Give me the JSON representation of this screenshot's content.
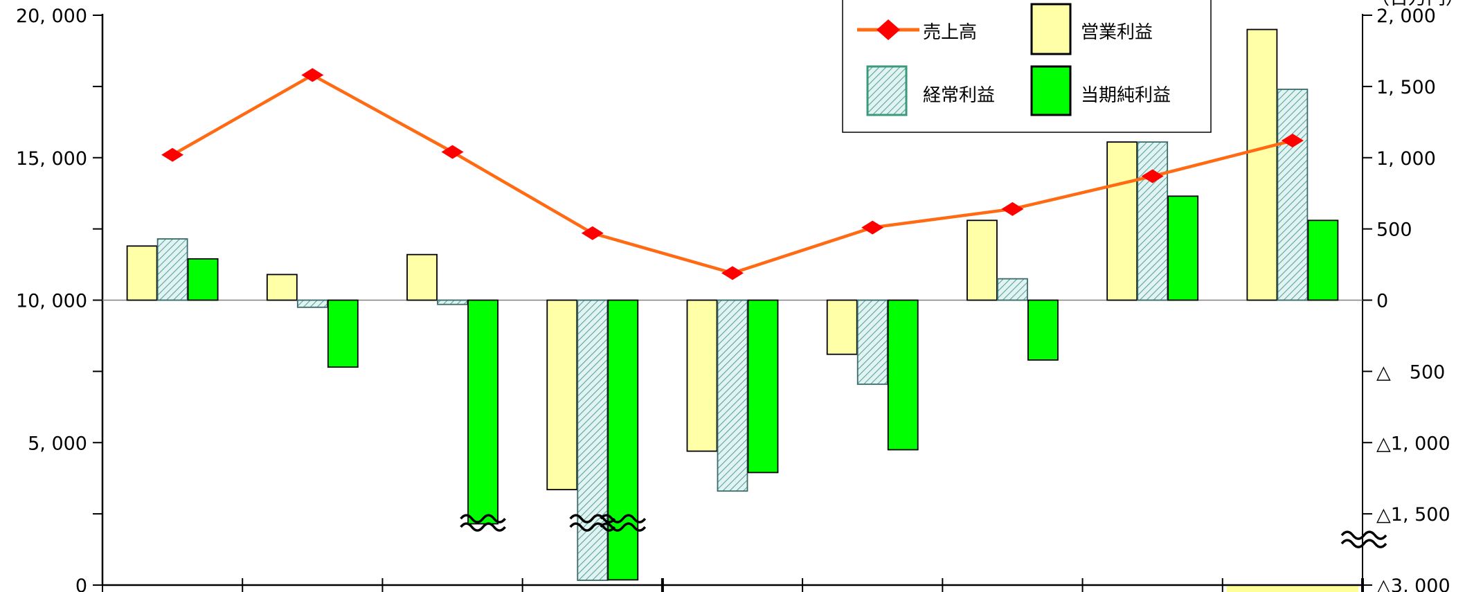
{
  "chart_data": {
    "type": "bar+line",
    "categories": [
      "",
      "",
      "",
      "",
      "",
      "",
      "",
      "",
      ""
    ],
    "series": [
      {
        "name": "売上高",
        "type": "line",
        "axis": "left",
        "color": "#ff6a13",
        "marker_color": "#ff0000",
        "values": [
          15100,
          17900,
          15200,
          12350,
          10950,
          12550,
          13200,
          14350,
          15600
        ]
      },
      {
        "name": "営業利益",
        "type": "bar",
        "axis": "right",
        "color": "#ffffa8",
        "values": [
          380,
          180,
          320,
          -1330,
          -1060,
          -380,
          560,
          1110,
          1900
        ]
      },
      {
        "name": "経常利益",
        "type": "bar",
        "axis": "right",
        "color": "#bfe8e2",
        "pattern": "hatch",
        "values": [
          430,
          -50,
          -30,
          -2900,
          -1340,
          -590,
          150,
          1110,
          1480
        ]
      },
      {
        "name": "当期純利益",
        "type": "bar",
        "axis": "right",
        "color": "#00ff00",
        "values": [
          290,
          -470,
          -1710,
          -2890,
          -1210,
          -1050,
          -420,
          730,
          560
        ]
      }
    ],
    "left_axis": {
      "ylim": [
        0,
        20000
      ],
      "ticks": [
        "0",
        "5, 000",
        "10, 000",
        "15, 000",
        "20, 000"
      ]
    },
    "right_axis": {
      "ylim": [
        -2000,
        2000
      ],
      "ticks": [
        "2, 000",
        "1, 500",
        "1, 000",
        "500",
        "0",
        "△　500",
        "△1, 000",
        "△1, 500",
        "△3, 000"
      ],
      "note": "（百万円）"
    },
    "legend": {
      "placement": "top-right",
      "items": [
        "売上高",
        "営業利益",
        "経常利益",
        "当期純利益"
      ]
    },
    "axis_break": true,
    "highlight_color": "#ffff99"
  }
}
